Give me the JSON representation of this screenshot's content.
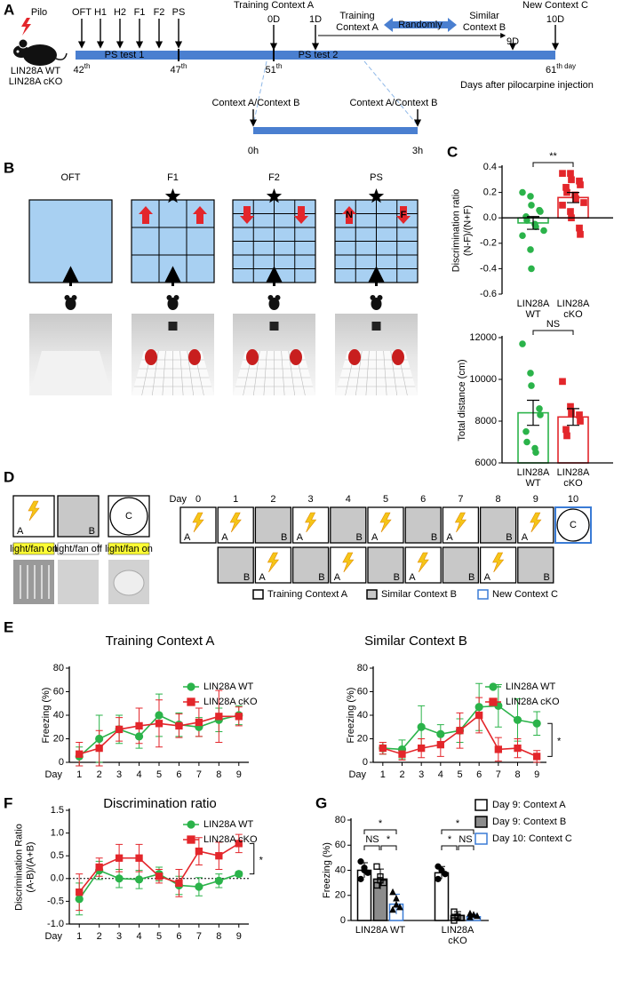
{
  "panel_labels": [
    "A",
    "B",
    "C",
    "D",
    "E",
    "F",
    "G"
  ],
  "panel_a": {
    "drug": "Pilo",
    "genotypes": [
      "LIN28A WT",
      "LIN28A cKO"
    ],
    "tests": [
      "OFT",
      "H1",
      "H2",
      "F1",
      "F2",
      "PS"
    ],
    "phases": [
      "PS test 1",
      "PS test 2"
    ],
    "days": [
      {
        "num": "42",
        "sup": "th"
      },
      {
        "num": "47",
        "sup": "th"
      },
      {
        "num": "51",
        "sup": "th"
      },
      {
        "num": "61",
        "sup": "th day"
      }
    ],
    "x_title": "Days after pilocarpine injection",
    "events": [
      {
        "title": "Training Context A",
        "day": "0D"
      },
      {
        "day": "1D"
      },
      {
        "day": "9D"
      },
      {
        "title": "New Context C",
        "day": "10D"
      }
    ],
    "contexts": [
      [
        "Training",
        "Context A"
      ],
      [
        "Similar",
        "Context B"
      ]
    ],
    "randomly": "Randomly",
    "session_labels": [
      "Context A/Context B",
      "Context A/Context B"
    ],
    "session_times": [
      "0h",
      "3h"
    ]
  },
  "panel_b": {
    "tests": [
      "OFT",
      "F1",
      "F2",
      "PS"
    ],
    "object_labels": [
      "N",
      "F"
    ]
  },
  "panel_d": {
    "contexts": [
      "A",
      "B",
      "C"
    ],
    "conditions": [
      "light/fan on",
      "light/fan off",
      "light/fan on"
    ],
    "day_title": "Day",
    "days": [
      0,
      1,
      2,
      3,
      4,
      5,
      6,
      7,
      8,
      9,
      10
    ],
    "schedule": [
      [
        "A",
        "A",
        "B",
        "A",
        "B",
        "A",
        "B",
        "A",
        "B",
        "A",
        "C"
      ],
      [
        "B",
        "A",
        "B",
        "A",
        "B",
        "A",
        "B",
        "A",
        "B"
      ]
    ],
    "legend": [
      "Training Context A",
      "Similar Context B",
      "New Context C"
    ]
  },
  "chart_data": [
    {
      "type": "dot-bar",
      "categories": [
        "LIN28A WT",
        "LIN28A cKO"
      ],
      "ylabel": [
        "Discrimination ratio",
        "(N-F)/(N+F)"
      ],
      "ylim": [
        -0.6,
        0.4
      ],
      "yticks": [
        -0.6,
        -0.4,
        -0.2,
        {
          "value": 0,
          "label": "0.0"
        },
        0.2,
        0.4
      ],
      "values": [
        -0.04,
        0.16
      ],
      "errors": [
        0.05,
        0.04
      ],
      "colors": [
        "#2bb34a",
        "#e3262b"
      ],
      "markers": [
        "circle",
        "square"
      ],
      "points": [
        [
          0.2,
          0.17,
          0.1,
          0.06,
          0.05,
          0.01,
          -0.02,
          -0.05,
          -0.07,
          -0.1,
          -0.14,
          -0.25,
          -0.4
        ],
        [
          0.35,
          0.35,
          0.3,
          0.29,
          0.26,
          0.24,
          0.2,
          0.18,
          0.15,
          0.12,
          0.1,
          0.05,
          0.0,
          -0.08,
          -0.13
        ]
      ],
      "significance": "**"
    },
    {
      "type": "dot-bar",
      "categories": [
        "LIN28A WT",
        "LIN28A cKO"
      ],
      "ylabel": [
        "Total distance (cm)"
      ],
      "ylim": [
        6000,
        12000
      ],
      "yticks": [
        6000,
        8000,
        10000,
        12000
      ],
      "values": [
        8400,
        8200
      ],
      "errors": [
        600,
        400
      ],
      "colors": [
        "#2bb34a",
        "#e3262b"
      ],
      "markers": [
        "circle",
        "square"
      ],
      "points": [
        [
          11700,
          10300,
          9700,
          8600,
          8300,
          7500,
          7000,
          6700,
          6500
        ],
        [
          9900,
          8700,
          8400,
          8300,
          8000,
          7600,
          7300
        ]
      ],
      "significance": "NS"
    },
    {
      "type": "line",
      "title": "Training Context A",
      "xlabel": "Day",
      "ylabel": [
        "Freezing (%)"
      ],
      "x": [
        1,
        2,
        3,
        4,
        5,
        6,
        7,
        8,
        9
      ],
      "xlim": [
        0.5,
        9.5
      ],
      "xticks": [
        1,
        2,
        3,
        4,
        5,
        6,
        7,
        8,
        9
      ],
      "ylim": [
        0,
        80
      ],
      "yticks": [
        0,
        20,
        40,
        60,
        80
      ],
      "series": [
        {
          "name": "LIN28A WT",
          "color": "#2bb34a",
          "marker": "circle",
          "values": [
            5,
            20,
            28,
            22,
            40,
            32,
            30,
            36,
            40
          ],
          "errors": [
            8,
            20,
            12,
            10,
            18,
            10,
            8,
            10,
            8
          ]
        },
        {
          "name": "LIN28A cKO",
          "color": "#e3262b",
          "marker": "square",
          "values": [
            7,
            12,
            28,
            31,
            33,
            31,
            34,
            39,
            39
          ],
          "errors": [
            10,
            15,
            10,
            15,
            20,
            10,
            12,
            22,
            8
          ]
        }
      ]
    },
    {
      "type": "line",
      "title": "Similar Context B",
      "xlabel": "Day",
      "ylabel": [
        "Freezing (%)"
      ],
      "x": [
        1,
        2,
        3,
        4,
        5,
        6,
        7,
        8,
        9
      ],
      "xlim": [
        0.5,
        9.5
      ],
      "xticks": [
        1,
        2,
        3,
        4,
        5,
        6,
        7,
        8,
        9
      ],
      "ylim": [
        0,
        80
      ],
      "yticks": [
        0,
        20,
        40,
        60,
        80
      ],
      "series": [
        {
          "name": "LIN28A WT",
          "color": "#2bb34a",
          "marker": "circle",
          "values": [
            12,
            11,
            30,
            24,
            27,
            47,
            48,
            36,
            33
          ],
          "errors": [
            5,
            8,
            18,
            8,
            10,
            20,
            18,
            18,
            10
          ]
        },
        {
          "name": "LIN28A cKO",
          "color": "#e3262b",
          "marker": "square",
          "values": [
            12,
            7,
            12,
            15,
            27,
            40,
            11,
            12,
            5
          ],
          "errors": [
            5,
            5,
            8,
            10,
            15,
            15,
            10,
            8,
            5
          ]
        }
      ],
      "significance": "*"
    },
    {
      "type": "line",
      "title": "Discrimination ratio",
      "xlabel": "Day",
      "ylabel": [
        "Discrimination Ratio",
        "(A-B)/(A+B)"
      ],
      "x": [
        1,
        2,
        3,
        4,
        5,
        6,
        7,
        8,
        9
      ],
      "xlim": [
        0.5,
        9.5
      ],
      "xticks": [
        1,
        2,
        3,
        4,
        5,
        6,
        7,
        8,
        9
      ],
      "ylim": [
        -1,
        1.5
      ],
      "yticks": [
        {
          "value": -1,
          "label": "-1.0"
        },
        -0.5,
        {
          "value": 0,
          "label": "0.0"
        },
        0.5,
        {
          "value": 1,
          "label": "1.0"
        },
        1.5
      ],
      "reference_line": 0,
      "series": [
        {
          "name": "LIN28A WT",
          "color": "#2bb34a",
          "marker": "circle",
          "values": [
            -0.45,
            0.18,
            0.0,
            -0.02,
            0.1,
            -0.15,
            -0.18,
            -0.05,
            0.1
          ],
          "errors": [
            0.35,
            0.2,
            0.2,
            0.2,
            0.15,
            0.2,
            0.2,
            0.15,
            0.05
          ]
        },
        {
          "name": "LIN28A cKO",
          "color": "#e3262b",
          "marker": "square",
          "values": [
            -0.3,
            0.25,
            0.45,
            0.45,
            0.05,
            -0.1,
            0.6,
            0.5,
            0.77
          ],
          "errors": [
            0.4,
            0.2,
            0.3,
            0.3,
            0.15,
            0.3,
            0.3,
            0.3,
            0.2
          ]
        }
      ],
      "significance": "*"
    },
    {
      "type": "grouped-dot-bar",
      "categories": [
        "LIN28A WT",
        "LIN28A cKO"
      ],
      "ylabel": [
        "Freezing (%)"
      ],
      "ylim": [
        0,
        80
      ],
      "yticks": [
        0,
        20,
        40,
        60,
        80
      ],
      "series": [
        {
          "name": "Day 9: Context A",
          "color": "#ffffff",
          "edgecolor": "#000000",
          "marker": "circle",
          "marker_fill": "#000000",
          "values": [
            40,
            38
          ],
          "errors": [
            6,
            5
          ],
          "points": [
            [
              47,
              42,
              38,
              33,
              40
            ],
            [
              43,
              40,
              37,
              33
            ]
          ]
        },
        {
          "name": "Day 9: Context B",
          "color": "#8c8c8c",
          "edgecolor": "#000000",
          "marker": "square",
          "marker_fill": "none",
          "values": [
            33,
            4
          ],
          "errors": [
            8,
            3
          ],
          "points": [
            [
              43,
              32,
              30,
              28,
              35
            ],
            [
              7,
              3,
              2,
              0
            ]
          ]
        },
        {
          "name": "Day 10: Context C",
          "color": "#ffffff",
          "edgecolor": "#3a7bd5",
          "marker": "triangle",
          "marker_fill": "#000000",
          "values": [
            13,
            3
          ],
          "errors": [
            8,
            2
          ],
          "points": [
            [
              22,
              17,
              10,
              8,
              12
            ],
            [
              5,
              4,
              3,
              2
            ]
          ]
        }
      ],
      "comparison_labels": [
        [
          "*",
          "NS",
          "*"
        ],
        [
          "*",
          "*",
          "NS"
        ]
      ]
    }
  ]
}
